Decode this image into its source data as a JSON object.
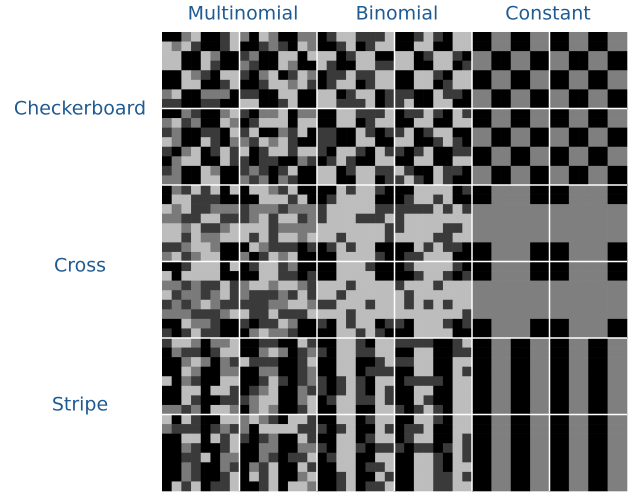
{
  "columns": [
    "Multinomial",
    "Binomial",
    "Constant"
  ],
  "rows": [
    "Checkerboard",
    "Cross",
    "Stripe"
  ]
}
